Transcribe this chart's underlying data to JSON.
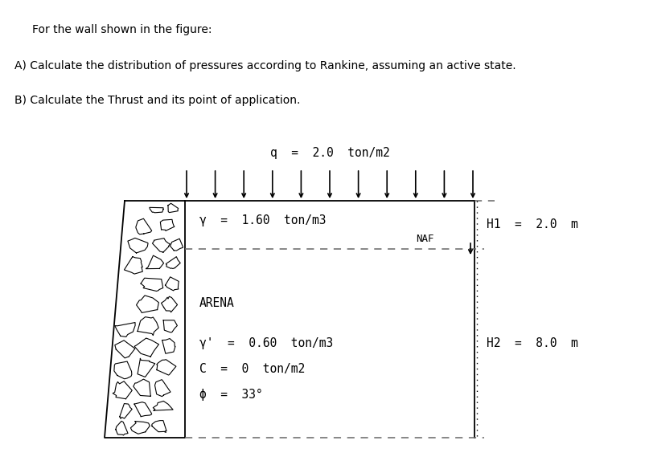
{
  "title_line1": "For the wall shown in the figure:",
  "title_line2": "A) Calculate the distribution of pressures according to Rankine, assuming an active state.",
  "title_line3": "B) Calculate the Thrust and its point of application.",
  "q_label": "q  =  2.0  ton/m2",
  "gamma_label": "γ  =  1.60  ton/m3",
  "naf_label": "NAF",
  "H1_label": "H1  =  2.0  m",
  "arena_label": "ARENA",
  "gamma_prime_label": "γ'  =  0.60  ton/m3",
  "C_label": "C  =  0  ton/m2",
  "phi_label": "ϕ  =  33°",
  "H2_label": "H2  =  8.0  m",
  "bg_color": "#ffffff",
  "dash_color": "#666666",
  "figure_width": 8.02,
  "figure_height": 5.84
}
